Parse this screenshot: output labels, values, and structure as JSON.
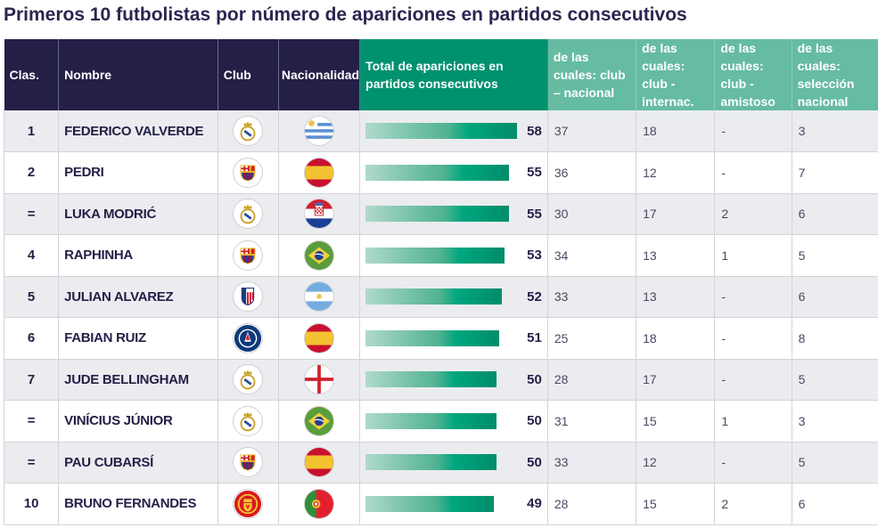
{
  "title": "Primeros 10 futbolistas por número de apariciones en partidos consecutivos",
  "colors": {
    "header_dark": "#241f46",
    "header_green": "#00916e",
    "header_light_green": "#66bba3",
    "row_alt": "#ebecef",
    "text_dark": "#231f47"
  },
  "headers": {
    "rank": "Clas.",
    "name": "Nombre",
    "club": "Club",
    "nationality": "Nacionalidad",
    "total": "Total de apariciones en partidos consecutivos",
    "club_nacional": "de las cuales: club – nacional",
    "club_internac": "de las cuales: club - internac.",
    "club_amistoso": "de las cuales: club - amistoso",
    "seleccion": "de las cuales: selección nacional"
  },
  "max_total": 58,
  "rows": [
    {
      "rank": "1",
      "name": "Federico Valverde",
      "club_icon": "real-madrid-crest",
      "flag_icon": "uruguay-flag",
      "total": 58,
      "total_label": "58",
      "club_nacional": "37",
      "club_internac": "18",
      "club_amistoso": "-",
      "seleccion": "3"
    },
    {
      "rank": "2",
      "name": "Pedri",
      "club_icon": "fc-barcelona-crest",
      "flag_icon": "spain-flag",
      "total": 55,
      "total_label": "55",
      "club_nacional": "36",
      "club_internac": "12",
      "club_amistoso": "-",
      "seleccion": "7"
    },
    {
      "rank": "=",
      "name": "Luka Modrić",
      "club_icon": "real-madrid-crest",
      "flag_icon": "croatia-flag",
      "total": 55,
      "total_label": "55",
      "club_nacional": "30",
      "club_internac": "17",
      "club_amistoso": "2",
      "seleccion": "6"
    },
    {
      "rank": "4",
      "name": "Raphinha",
      "club_icon": "fc-barcelona-crest",
      "flag_icon": "brazil-flag",
      "total": 53,
      "total_label": "53",
      "club_nacional": "34",
      "club_internac": "13",
      "club_amistoso": "1",
      "seleccion": "5"
    },
    {
      "rank": "5",
      "name": "Julian Alvarez",
      "club_icon": "atletico-madrid-crest",
      "flag_icon": "argentina-flag",
      "total": 52,
      "total_label": "52",
      "club_nacional": "33",
      "club_internac": "13",
      "club_amistoso": "-",
      "seleccion": "6"
    },
    {
      "rank": "6",
      "name": "Fabian Ruiz",
      "club_icon": "psg-crest",
      "flag_icon": "spain-flag",
      "total": 51,
      "total_label": "51",
      "club_nacional": "25",
      "club_internac": "18",
      "club_amistoso": "-",
      "seleccion": "8"
    },
    {
      "rank": "7",
      "name": "Jude Bellingham",
      "club_icon": "real-madrid-crest",
      "flag_icon": "england-flag",
      "total": 50,
      "total_label": "50",
      "club_nacional": "28",
      "club_internac": "17",
      "club_amistoso": "-",
      "seleccion": "5"
    },
    {
      "rank": "=",
      "name": "Vinícius Júnior",
      "club_icon": "real-madrid-crest",
      "flag_icon": "brazil-flag",
      "total": 50,
      "total_label": "50",
      "club_nacional": "31",
      "club_internac": "15",
      "club_amistoso": "1",
      "seleccion": "3"
    },
    {
      "rank": "=",
      "name": "Pau Cubarsí",
      "club_icon": "fc-barcelona-crest",
      "flag_icon": "spain-flag",
      "total": 50,
      "total_label": "50",
      "club_nacional": "33",
      "club_internac": "12",
      "club_amistoso": "-",
      "seleccion": "5"
    },
    {
      "rank": "10",
      "name": "Bruno Fernandes",
      "club_icon": "manchester-united-crest",
      "flag_icon": "portugal-flag",
      "total": 49,
      "total_label": "49",
      "club_nacional": "28",
      "club_internac": "15",
      "club_amistoso": "2",
      "seleccion": "6"
    }
  ]
}
